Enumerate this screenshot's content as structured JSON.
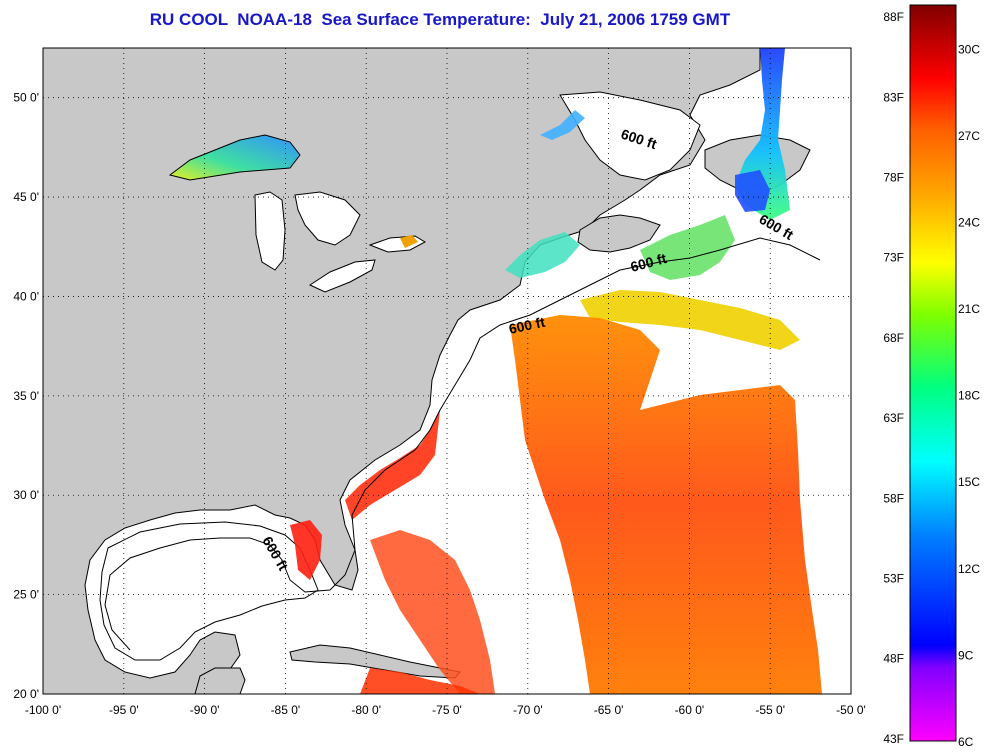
{
  "title": "RU COOL  NOAA-18  Sea Surface Temperature:  July 21, 2006 1759 GMT",
  "map": {
    "lon_labels": [
      "-100 0'",
      "-95 0'",
      "-90 0'",
      "-85 0'",
      "-80 0'",
      "-75 0'",
      "-70 0'",
      "-65 0'",
      "-60 0'",
      "-55 0'",
      "-50 0'"
    ],
    "lon_values": [
      -100,
      -95,
      -90,
      -85,
      -80,
      -75,
      -70,
      -65,
      -60,
      -55,
      -50
    ],
    "lat_labels": [
      "50 0'",
      "45 0'",
      "40 0'",
      "35 0'",
      "30 0'",
      "25 0'",
      "20 0'"
    ],
    "lat_values": [
      50,
      45,
      40,
      35,
      30,
      25,
      20
    ],
    "lon_range": [
      -100,
      -50
    ],
    "lat_range": [
      20,
      52.5
    ],
    "depth_contour_label": "600 ft",
    "depth_labels": [
      "600 ft",
      "600 ft",
      "600 ft",
      "600 ft",
      "600 ft"
    ],
    "land_color": "#c8c8c8",
    "ocean_color": "#ffffff",
    "grid": "dotted"
  },
  "colorbar": {
    "fahrenheit_labels": [
      "88F",
      "83F",
      "78F",
      "73F",
      "68F",
      "63F",
      "58F",
      "53F",
      "48F",
      "43F"
    ],
    "celsius_labels": [
      "30C",
      "27C",
      "24C",
      "21C",
      "18C",
      "15C",
      "12C",
      "9C",
      "6C"
    ],
    "range_c": [
      6,
      31.5
    ],
    "colors": [
      "#ff00ff",
      "#8000ff",
      "#0000ff",
      "#0080ff",
      "#00ffff",
      "#00ff80",
      "#80ff00",
      "#ffff00",
      "#ffa000",
      "#ff6000",
      "#ff0000",
      "#800000"
    ]
  }
}
